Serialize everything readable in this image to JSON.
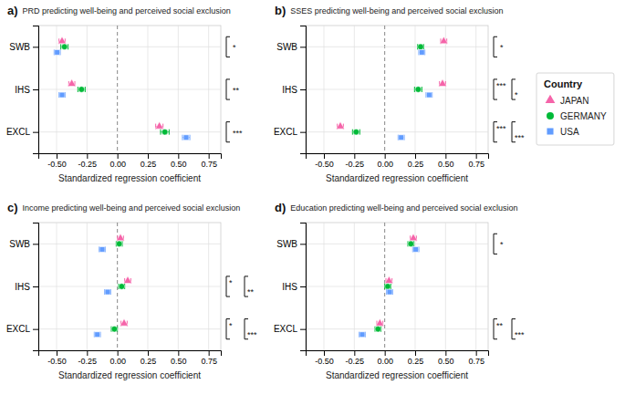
{
  "chart_data": [
    {
      "type": "dot",
      "orientation": "horizontal",
      "title": "PRD predicting well-being and perceived social exclusion",
      "xlabel": "Standardized regression coefficient",
      "categories": [
        "SWB",
        "IHS",
        "EXCL"
      ],
      "series": [
        {
          "name": "JAPAN",
          "color": "#F564A9",
          "marker": "triangle",
          "values": [
            -0.455,
            -0.375,
            0.345
          ],
          "errors": [
            0.025,
            0.025,
            0.03
          ]
        },
        {
          "name": "GERMANY",
          "color": "#00BA38",
          "marker": "circle",
          "values": [
            -0.435,
            -0.295,
            0.39
          ],
          "errors": [
            0.03,
            0.03,
            0.035
          ]
        },
        {
          "name": "USA",
          "color": "#619CFF",
          "marker": "square",
          "values": [
            -0.495,
            -0.455,
            0.565
          ],
          "errors": [
            0.025,
            0.025,
            0.03
          ]
        }
      ],
      "annotations": [
        {
          "text": "a)"
        },
        {
          "category": "SWB",
          "text": "*"
        },
        {
          "category": "IHS",
          "text": "**"
        },
        {
          "category": "EXCL",
          "text": "***"
        }
      ],
      "xlim": [
        -0.65,
        0.85
      ],
      "xticks": [
        {
          "value": -0.5,
          "label": "-0.50"
        },
        {
          "value": -0.25,
          "label": "-0.25"
        },
        {
          "value": 0.0,
          "label": "0.00"
        },
        {
          "value": 0.25,
          "label": "0.25"
        },
        {
          "value": 0.5,
          "label": "0.50"
        },
        {
          "value": 0.75,
          "label": "0.75"
        }
      ],
      "grid": true
    },
    {
      "type": "dot",
      "orientation": "horizontal",
      "title": "SSES predicting well-being and perceived social exclusion",
      "xlabel": "Standardized regression coefficient",
      "categories": [
        "SWB",
        "IHS",
        "EXCL"
      ],
      "series": [
        {
          "name": "JAPAN",
          "color": "#F564A9",
          "marker": "triangle",
          "values": [
            0.485,
            0.475,
            -0.365
          ],
          "errors": [
            0.025,
            0.025,
            0.025
          ]
        },
        {
          "name": "GERMANY",
          "color": "#00BA38",
          "marker": "circle",
          "values": [
            0.295,
            0.275,
            -0.235
          ],
          "errors": [
            0.025,
            0.03,
            0.03
          ]
        },
        {
          "name": "USA",
          "color": "#619CFF",
          "marker": "square",
          "values": [
            0.305,
            0.365,
            0.135
          ],
          "errors": [
            0.025,
            0.025,
            0.025
          ]
        }
      ],
      "annotations": [
        {
          "text": "b)"
        },
        {
          "category": "SWB",
          "text": "*"
        },
        {
          "category": "IHS",
          "text": "***"
        },
        {
          "category": "IHS",
          "text": "*"
        },
        {
          "category": "EXCL",
          "text": "***"
        },
        {
          "category": "EXCL",
          "text": "***"
        }
      ],
      "xlim": [
        -0.65,
        0.85
      ],
      "xticks": [
        {
          "value": -0.5,
          "label": "-0.50"
        },
        {
          "value": -0.25,
          "label": "-0.25"
        },
        {
          "value": 0.0,
          "label": "0.00"
        },
        {
          "value": 0.25,
          "label": "0.25"
        },
        {
          "value": 0.5,
          "label": "0.50"
        },
        {
          "value": 0.75,
          "label": "0.75"
        }
      ],
      "grid": true,
      "legend": "right",
      "legend_title": "Country"
    },
    {
      "type": "dot",
      "orientation": "horizontal",
      "title": "Income predicting well-being and perceived social exclusion",
      "xlabel": "Standardized regression coefficient",
      "categories": [
        "SWB",
        "IHS",
        "EXCL"
      ],
      "series": [
        {
          "name": "JAPAN",
          "color": "#F564A9",
          "marker": "triangle",
          "values": [
            0.025,
            0.085,
            0.055
          ],
          "errors": [
            0.025,
            0.025,
            0.025
          ]
        },
        {
          "name": "GERMANY",
          "color": "#00BA38",
          "marker": "circle",
          "values": [
            0.015,
            0.035,
            -0.025
          ],
          "errors": [
            0.025,
            0.025,
            0.025
          ]
        },
        {
          "name": "USA",
          "color": "#619CFF",
          "marker": "square",
          "values": [
            -0.125,
            -0.08,
            -0.165
          ],
          "errors": [
            0.025,
            0.025,
            0.025
          ]
        }
      ],
      "annotations": [
        {
          "text": "c)"
        },
        {
          "category": "IHS",
          "text": "*"
        },
        {
          "category": "IHS",
          "text": "**"
        },
        {
          "category": "EXCL",
          "text": "*"
        },
        {
          "category": "EXCL",
          "text": "***"
        }
      ],
      "xlim": [
        -0.65,
        0.85
      ],
      "xticks": [
        {
          "value": -0.5,
          "label": "-0.50"
        },
        {
          "value": -0.25,
          "label": "-0.25"
        },
        {
          "value": 0.0,
          "label": "0.00"
        },
        {
          "value": 0.25,
          "label": "0.25"
        },
        {
          "value": 0.5,
          "label": "0.50"
        },
        {
          "value": 0.75,
          "label": "0.75"
        }
      ],
      "grid": true
    },
    {
      "type": "dot",
      "orientation": "horizontal",
      "title": "Education predicting well-being and perceived social exclusion",
      "xlabel": "Standardized regression coefficient",
      "categories": [
        "SWB",
        "IHS",
        "EXCL"
      ],
      "series": [
        {
          "name": "JAPAN",
          "color": "#F564A9",
          "marker": "triangle",
          "values": [
            0.235,
            0.035,
            -0.04
          ],
          "errors": [
            0.025,
            0.025,
            0.025
          ]
        },
        {
          "name": "GERMANY",
          "color": "#00BA38",
          "marker": "circle",
          "values": [
            0.215,
            0.025,
            -0.055
          ],
          "errors": [
            0.025,
            0.025,
            0.025
          ]
        },
        {
          "name": "USA",
          "color": "#619CFF",
          "marker": "square",
          "values": [
            0.255,
            0.04,
            -0.185
          ],
          "errors": [
            0.025,
            0.025,
            0.025
          ]
        }
      ],
      "annotations": [
        {
          "text": "d)"
        },
        {
          "category": "SWB",
          "text": "*"
        },
        {
          "category": "EXCL",
          "text": "**"
        },
        {
          "category": "EXCL",
          "text": "***"
        }
      ],
      "xlim": [
        -0.65,
        0.85
      ],
      "xticks": [
        {
          "value": -0.5,
          "label": "-0.50"
        },
        {
          "value": -0.25,
          "label": "-0.25"
        },
        {
          "value": 0.0,
          "label": "0.00"
        },
        {
          "value": 0.25,
          "label": "0.25"
        },
        {
          "value": 0.5,
          "label": "0.50"
        },
        {
          "value": 0.75,
          "label": "0.75"
        }
      ],
      "grid": true
    }
  ]
}
